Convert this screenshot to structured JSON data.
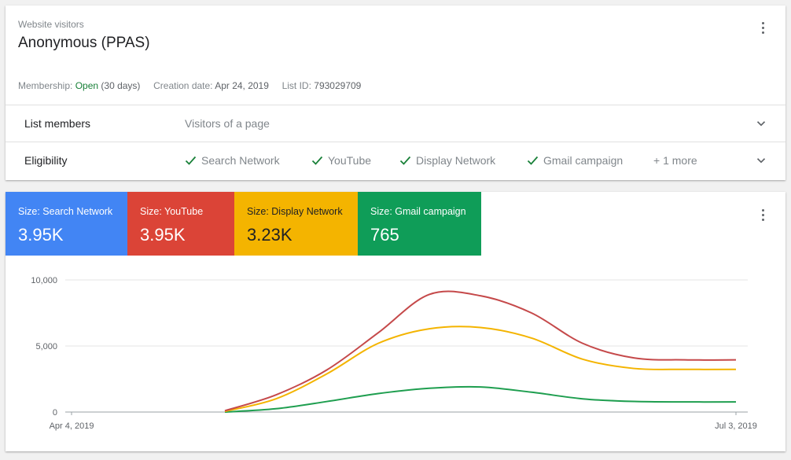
{
  "header": {
    "subtitle": "Website visitors",
    "title": "Anonymous (PPAS)",
    "membership_label": "Membership:",
    "membership_status": "Open",
    "membership_duration": "(30 days)",
    "creation_label": "Creation date:",
    "creation_value": "Apr 24, 2019",
    "listid_label": "List ID:",
    "listid_value": "793029709"
  },
  "list_members": {
    "label": "List members",
    "value": "Visitors of a page"
  },
  "eligibility": {
    "label": "Eligibility",
    "items": [
      "Search Network",
      "YouTube",
      "Display Network",
      "Gmail campaign"
    ],
    "more": "+ 1 more"
  },
  "icons": [
    "more-vert-icon",
    "chevron-down-icon",
    "check-icon"
  ],
  "colors": {
    "search": "#4285f4",
    "youtube": "#db4437",
    "display": "#f4b400",
    "gmail": "#0f9d58",
    "line_youtube": "#c5494a",
    "line_display": "#f4b400",
    "line_gmail": "#1e9e4f"
  },
  "tiles": [
    {
      "label": "Size: Search Network",
      "value": "3.95K"
    },
    {
      "label": "Size: YouTube",
      "value": "3.95K"
    },
    {
      "label": "Size: Display Network",
      "value": "3.23K"
    },
    {
      "label": "Size: Gmail campaign",
      "value": "765"
    }
  ],
  "chart_data": {
    "type": "line",
    "x": [
      "Apr 4, 2019",
      "Apr 11, 2019",
      "Apr 18, 2019",
      "Apr 25, 2019",
      "May 2, 2019",
      "May 9, 2019",
      "May 16, 2019",
      "May 23, 2019",
      "May 30, 2019",
      "Jun 6, 2019",
      "Jun 13, 2019",
      "Jun 20, 2019",
      "Jun 27, 2019",
      "Jul 3, 2019"
    ],
    "x_tick_labels": [
      "Apr 4, 2019",
      "Jul 3, 2019"
    ],
    "y_ticks": [
      "0",
      "5,000",
      "10,000"
    ],
    "ylim": [
      0,
      10000
    ],
    "grid": true,
    "series": [
      {
        "color": "#c5494a",
        "values": [
          null,
          null,
          null,
          100,
          1300,
          3200,
          6000,
          8900,
          8800,
          7500,
          5200,
          4100,
          3950,
          3950
        ]
      },
      {
        "color": "#f4b400",
        "values": [
          null,
          null,
          null,
          50,
          1000,
          2900,
          5200,
          6300,
          6400,
          5600,
          4000,
          3300,
          3230,
          3230
        ]
      },
      {
        "color": "#1e9e4f",
        "values": [
          null,
          null,
          null,
          0,
          250,
          800,
          1400,
          1800,
          1900,
          1500,
          1000,
          800,
          765,
          765
        ]
      }
    ]
  }
}
